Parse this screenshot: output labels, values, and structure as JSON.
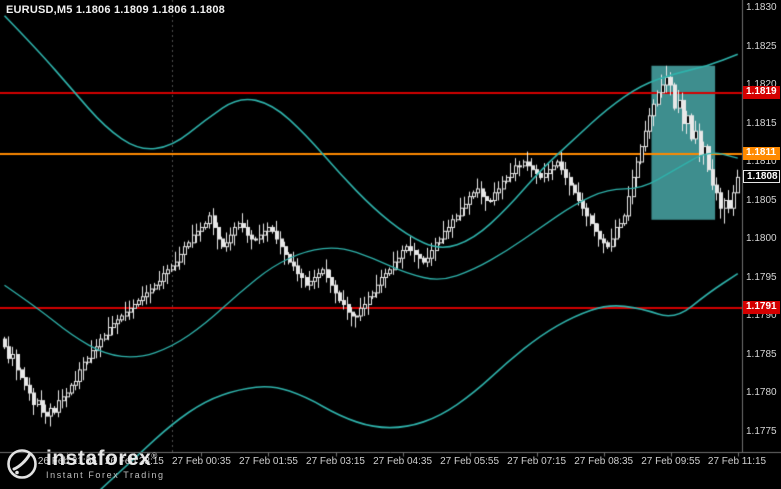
{
  "window": {
    "title": "EURUSD,M5 1.1806 1.1809 1.1806 1.1808"
  },
  "chart_data": {
    "type": "candlestick",
    "symbol": "EURUSD",
    "timeframe": "M5",
    "current_bar": {
      "open": 1.1806,
      "high": 1.1809,
      "low": 1.1806,
      "close": 1.1808
    },
    "price_axis": {
      "labels": [
        "1.1830",
        "1.1825",
        "1.1820",
        "1.1815",
        "1.1810",
        "1.1805",
        "1.1800",
        "1.1795",
        "1.1790",
        "1.1785",
        "1.1780",
        "1.1775"
      ],
      "max": 1.183,
      "min": 1.1775,
      "step": 0.0005
    },
    "time_axis": {
      "start": "26 Feb 20:40",
      "interval_minutes": 5,
      "labels": [
        {
          "index": 15,
          "text": "26 Feb 21:55"
        },
        {
          "index": 31,
          "text": "26 Feb 23:15"
        },
        {
          "index": 47,
          "text": "27 Feb 00:35"
        },
        {
          "index": 63,
          "text": "27 Feb 01:55"
        },
        {
          "index": 79,
          "text": "27 Feb 03:15"
        },
        {
          "index": 95,
          "text": "27 Feb 04:35"
        },
        {
          "index": 111,
          "text": "27 Feb 05:55"
        },
        {
          "index": 127,
          "text": "27 Feb 07:15"
        },
        {
          "index": 143,
          "text": "27 Feb 08:35"
        },
        {
          "index": 159,
          "text": "27 Feb 09:55"
        },
        {
          "index": 175,
          "text": "27 Feb 11:15"
        }
      ]
    },
    "closes": [
      1.1786,
      1.17845,
      1.1785,
      1.1783,
      1.1782,
      1.1781,
      1.178,
      1.17785,
      1.1779,
      1.17775,
      1.1777,
      1.1778,
      1.17775,
      1.1779,
      1.17795,
      1.178,
      1.1781,
      1.17815,
      1.1783,
      1.1784,
      1.17845,
      1.17855,
      1.1786,
      1.1787,
      1.17875,
      1.17885,
      1.1789,
      1.17895,
      1.179,
      1.17905,
      1.1791,
      1.17915,
      1.1792,
      1.17925,
      1.1793,
      1.17935,
      1.1794,
      1.17945,
      1.17955,
      1.1796,
      1.17965,
      1.1797,
      1.1798,
      1.1799,
      1.17995,
      1.18005,
      1.1801,
      1.18015,
      1.1802,
      1.1803,
      1.18015,
      1.18,
      1.1799,
      1.17995,
      1.18005,
      1.18015,
      1.1802,
      1.18015,
      1.18005,
      1.18,
      1.18,
      1.18005,
      1.1801,
      1.18015,
      1.1801,
      1.18,
      1.1799,
      1.1798,
      1.1797,
      1.17965,
      1.17955,
      1.1795,
      1.1794,
      1.17945,
      1.1795,
      1.17955,
      1.1796,
      1.1795,
      1.1794,
      1.1793,
      1.1792,
      1.17915,
      1.17905,
      1.179,
      1.179,
      1.1791,
      1.17915,
      1.17925,
      1.1793,
      1.1794,
      1.1795,
      1.17955,
      1.1796,
      1.1797,
      1.17975,
      1.17985,
      1.1799,
      1.17985,
      1.1798,
      1.17975,
      1.1797,
      1.17975,
      1.17985,
      1.17995,
      1.18,
      1.1801,
      1.18015,
      1.18025,
      1.1803,
      1.1804,
      1.18045,
      1.18055,
      1.1806,
      1.18065,
      1.18055,
      1.1805,
      1.1805,
      1.1806,
      1.18065,
      1.18075,
      1.1808,
      1.18085,
      1.18095,
      1.18095,
      1.181,
      1.18095,
      1.1809,
      1.18085,
      1.1808,
      1.18085,
      1.1809,
      1.18095,
      1.181,
      1.1809,
      1.1808,
      1.1807,
      1.1806,
      1.1805,
      1.1804,
      1.1803,
      1.1802,
      1.1801,
      1.18,
      1.17995,
      1.1799,
      1.18,
      1.18015,
      1.1802,
      1.1803,
      1.18055,
      1.1808,
      1.181,
      1.1812,
      1.1814,
      1.1816,
      1.18175,
      1.1819,
      1.182,
      1.1821,
      1.182,
      1.1817,
      1.1818,
      1.1815,
      1.1816,
      1.1813,
      1.1814,
      1.1811,
      1.1812,
      1.1809,
      1.1807,
      1.1806,
      1.1804,
      1.1805,
      1.1804,
      1.1806,
      1.1808
    ],
    "bands": {
      "name": "Bollinger Bands",
      "sample_step": 8,
      "upper": [
        1.1829,
        1.18245,
        1.18195,
        1.18145,
        1.18115,
        1.1812,
        1.18155,
        1.18185,
        1.18175,
        1.18135,
        1.18085,
        1.1804,
        1.18005,
        1.17985,
        1.18,
        1.1804,
        1.1809,
        1.1813,
        1.1817,
        1.182,
        1.18215,
        1.18225,
        1.1824
      ],
      "middle": [
        1.1794,
        1.1791,
        1.17875,
        1.1785,
        1.17845,
        1.1786,
        1.1789,
        1.1793,
        1.17965,
        1.17985,
        1.1799,
        1.17975,
        1.17955,
        1.17945,
        1.1796,
        1.17985,
        1.18015,
        1.18045,
        1.18065,
        1.18065,
        1.1809,
        1.18115,
        1.18105
      ],
      "lower": [
        1.1759,
        1.1761,
        1.1764,
        1.1768,
        1.1772,
        1.1776,
        1.1779,
        1.17805,
        1.1781,
        1.17795,
        1.1777,
        1.17755,
        1.17755,
        1.1777,
        1.178,
        1.1784,
        1.17875,
        1.179,
        1.17915,
        1.1791,
        1.17895,
        1.1793,
        1.17955
      ]
    },
    "levels": [
      {
        "label": "1.1819",
        "price": 1.1819,
        "color": "#d40000",
        "role": "resistance"
      },
      {
        "label": "1.1811",
        "price": 1.1811,
        "color": "#ff8a00",
        "role": "intermediate"
      },
      {
        "label": "1.1791",
        "price": 1.1791,
        "color": "#d40000",
        "role": "support"
      },
      {
        "label": "1.1808",
        "price": 1.1808,
        "color": "#000000",
        "role": "current-price"
      }
    ],
    "highlight_box": {
      "from_index": 155,
      "to_index": 169,
      "price_top": 1.18225,
      "price_bottom": 1.18025,
      "color": "#3e8e8e"
    },
    "day_separator_index": 40,
    "wick_overrides": {
      "49": {
        "high": 1.18035
      },
      "84": {
        "low": 1.17885
      },
      "158": {
        "high": 1.18225
      },
      "172": {
        "low": 1.1802
      }
    },
    "colors": {
      "background": "#000000",
      "candle_up_fill": "#000000",
      "candle_down_fill": "#e8e8e8",
      "candle_border": "#e8e8e8",
      "bands": "#2fb3ac",
      "axis_text": "#d6d6d6",
      "separator": "#707070",
      "day_line": "#4f4f4f"
    }
  },
  "watermark": {
    "brand": "instaforex",
    "registered": "®",
    "tagline": "Instant Forex Trading"
  }
}
